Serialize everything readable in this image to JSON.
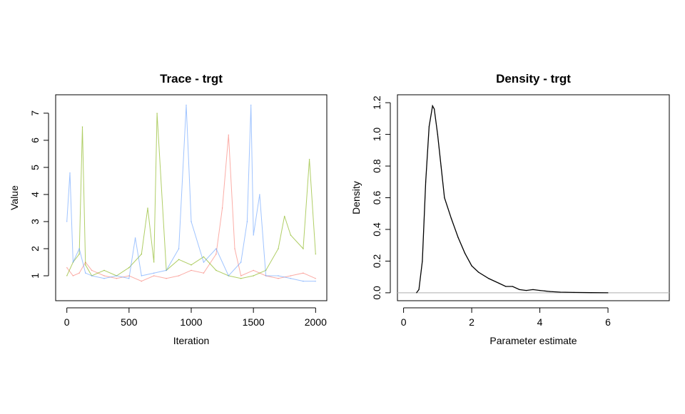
{
  "chart_data": [
    {
      "type": "line",
      "title": "Trace - trgt",
      "xlabel": "Iteration",
      "ylabel": "Value",
      "xlim": [
        0,
        2000
      ],
      "ylim": [
        1,
        7
      ],
      "x_ticks": [
        0,
        500,
        1000,
        1500,
        2000
      ],
      "y_ticks": [
        1,
        2,
        3,
        4,
        5,
        6,
        7
      ],
      "x_tick_labels": [
        "0",
        "500",
        "1000",
        "1500",
        "2000"
      ],
      "y_tick_labels": [
        "1",
        "2",
        "3",
        "4",
        "5",
        "6",
        "7"
      ],
      "grid": false,
      "legend": "none",
      "series": [
        {
          "color": "#F8766D",
          "x": [
            0,
            50,
            100,
            150,
            200,
            300,
            400,
            500,
            600,
            700,
            800,
            900,
            1000,
            1100,
            1200,
            1250,
            1300,
            1350,
            1400,
            1500,
            1600,
            1700,
            1800,
            1900,
            2000
          ],
          "values": [
            1.3,
            1.0,
            1.1,
            1.5,
            1.2,
            1.0,
            0.9,
            1.0,
            0.8,
            1.0,
            0.9,
            1.0,
            1.2,
            1.1,
            1.8,
            3.5,
            6.2,
            2.0,
            1.0,
            1.2,
            1.0,
            0.9,
            1.0,
            1.1,
            0.9
          ]
        },
        {
          "color": "#7CAE00",
          "x": [
            0,
            50,
            100,
            125,
            150,
            200,
            300,
            400,
            500,
            600,
            650,
            700,
            725,
            800,
            900,
            1000,
            1100,
            1200,
            1300,
            1400,
            1500,
            1600,
            1700,
            1750,
            1800,
            1900,
            1950,
            2000
          ],
          "values": [
            1.0,
            1.5,
            1.8,
            6.5,
            1.4,
            1.0,
            1.2,
            1.0,
            1.3,
            1.8,
            3.5,
            1.5,
            7.0,
            1.2,
            1.6,
            1.4,
            1.7,
            1.2,
            1.0,
            0.9,
            1.0,
            1.2,
            2.0,
            3.2,
            2.5,
            2.0,
            5.3,
            1.8
          ]
        },
        {
          "color": "#619CFF",
          "x": [
            0,
            25,
            50,
            100,
            150,
            200,
            300,
            400,
            500,
            550,
            600,
            700,
            800,
            900,
            960,
            1000,
            1100,
            1200,
            1300,
            1400,
            1450,
            1480,
            1500,
            1550,
            1600,
            1700,
            1800,
            1900,
            2000
          ],
          "values": [
            3.0,
            4.8,
            1.5,
            2.0,
            1.1,
            1.0,
            0.9,
            1.0,
            0.9,
            2.4,
            1.0,
            1.1,
            1.2,
            2.0,
            7.3,
            3.0,
            1.5,
            2.0,
            1.0,
            1.5,
            3.0,
            7.3,
            2.5,
            4.0,
            1.0,
            1.0,
            0.9,
            0.8,
            0.8
          ]
        }
      ]
    },
    {
      "type": "line",
      "title": "Density - trgt",
      "xlabel": "Parameter estimate",
      "ylabel": "Density",
      "xlim": [
        0,
        7.8
      ],
      "ylim": [
        0,
        1.2
      ],
      "x_ticks": [
        0,
        2,
        4,
        6
      ],
      "y_ticks": [
        0,
        0.2,
        0.4,
        0.6,
        0.8,
        1.0,
        1.2
      ],
      "x_tick_labels": [
        "0",
        "2",
        "4",
        "6"
      ],
      "y_tick_labels": [
        "0.0",
        "0.2",
        "0.4",
        "0.6",
        "0.8",
        "1.0",
        "1.2"
      ],
      "grid": false,
      "legend": "none",
      "baseline": 0,
      "series": [
        {
          "color": "#000000",
          "x": [
            0.38,
            0.45,
            0.55,
            0.65,
            0.75,
            0.85,
            0.9,
            1.0,
            1.1,
            1.2,
            1.4,
            1.6,
            1.8,
            2.0,
            2.2,
            2.5,
            2.8,
            3.0,
            3.2,
            3.4,
            3.6,
            3.8,
            4.0,
            4.3,
            4.6,
            5.0,
            5.5,
            6.0
          ],
          "values": [
            0.0,
            0.02,
            0.2,
            0.7,
            1.05,
            1.18,
            1.16,
            1.0,
            0.8,
            0.6,
            0.47,
            0.35,
            0.25,
            0.17,
            0.13,
            0.09,
            0.06,
            0.04,
            0.04,
            0.02,
            0.015,
            0.02,
            0.015,
            0.008,
            0.004,
            0.002,
            0.001,
            0.0
          ]
        }
      ]
    }
  ]
}
